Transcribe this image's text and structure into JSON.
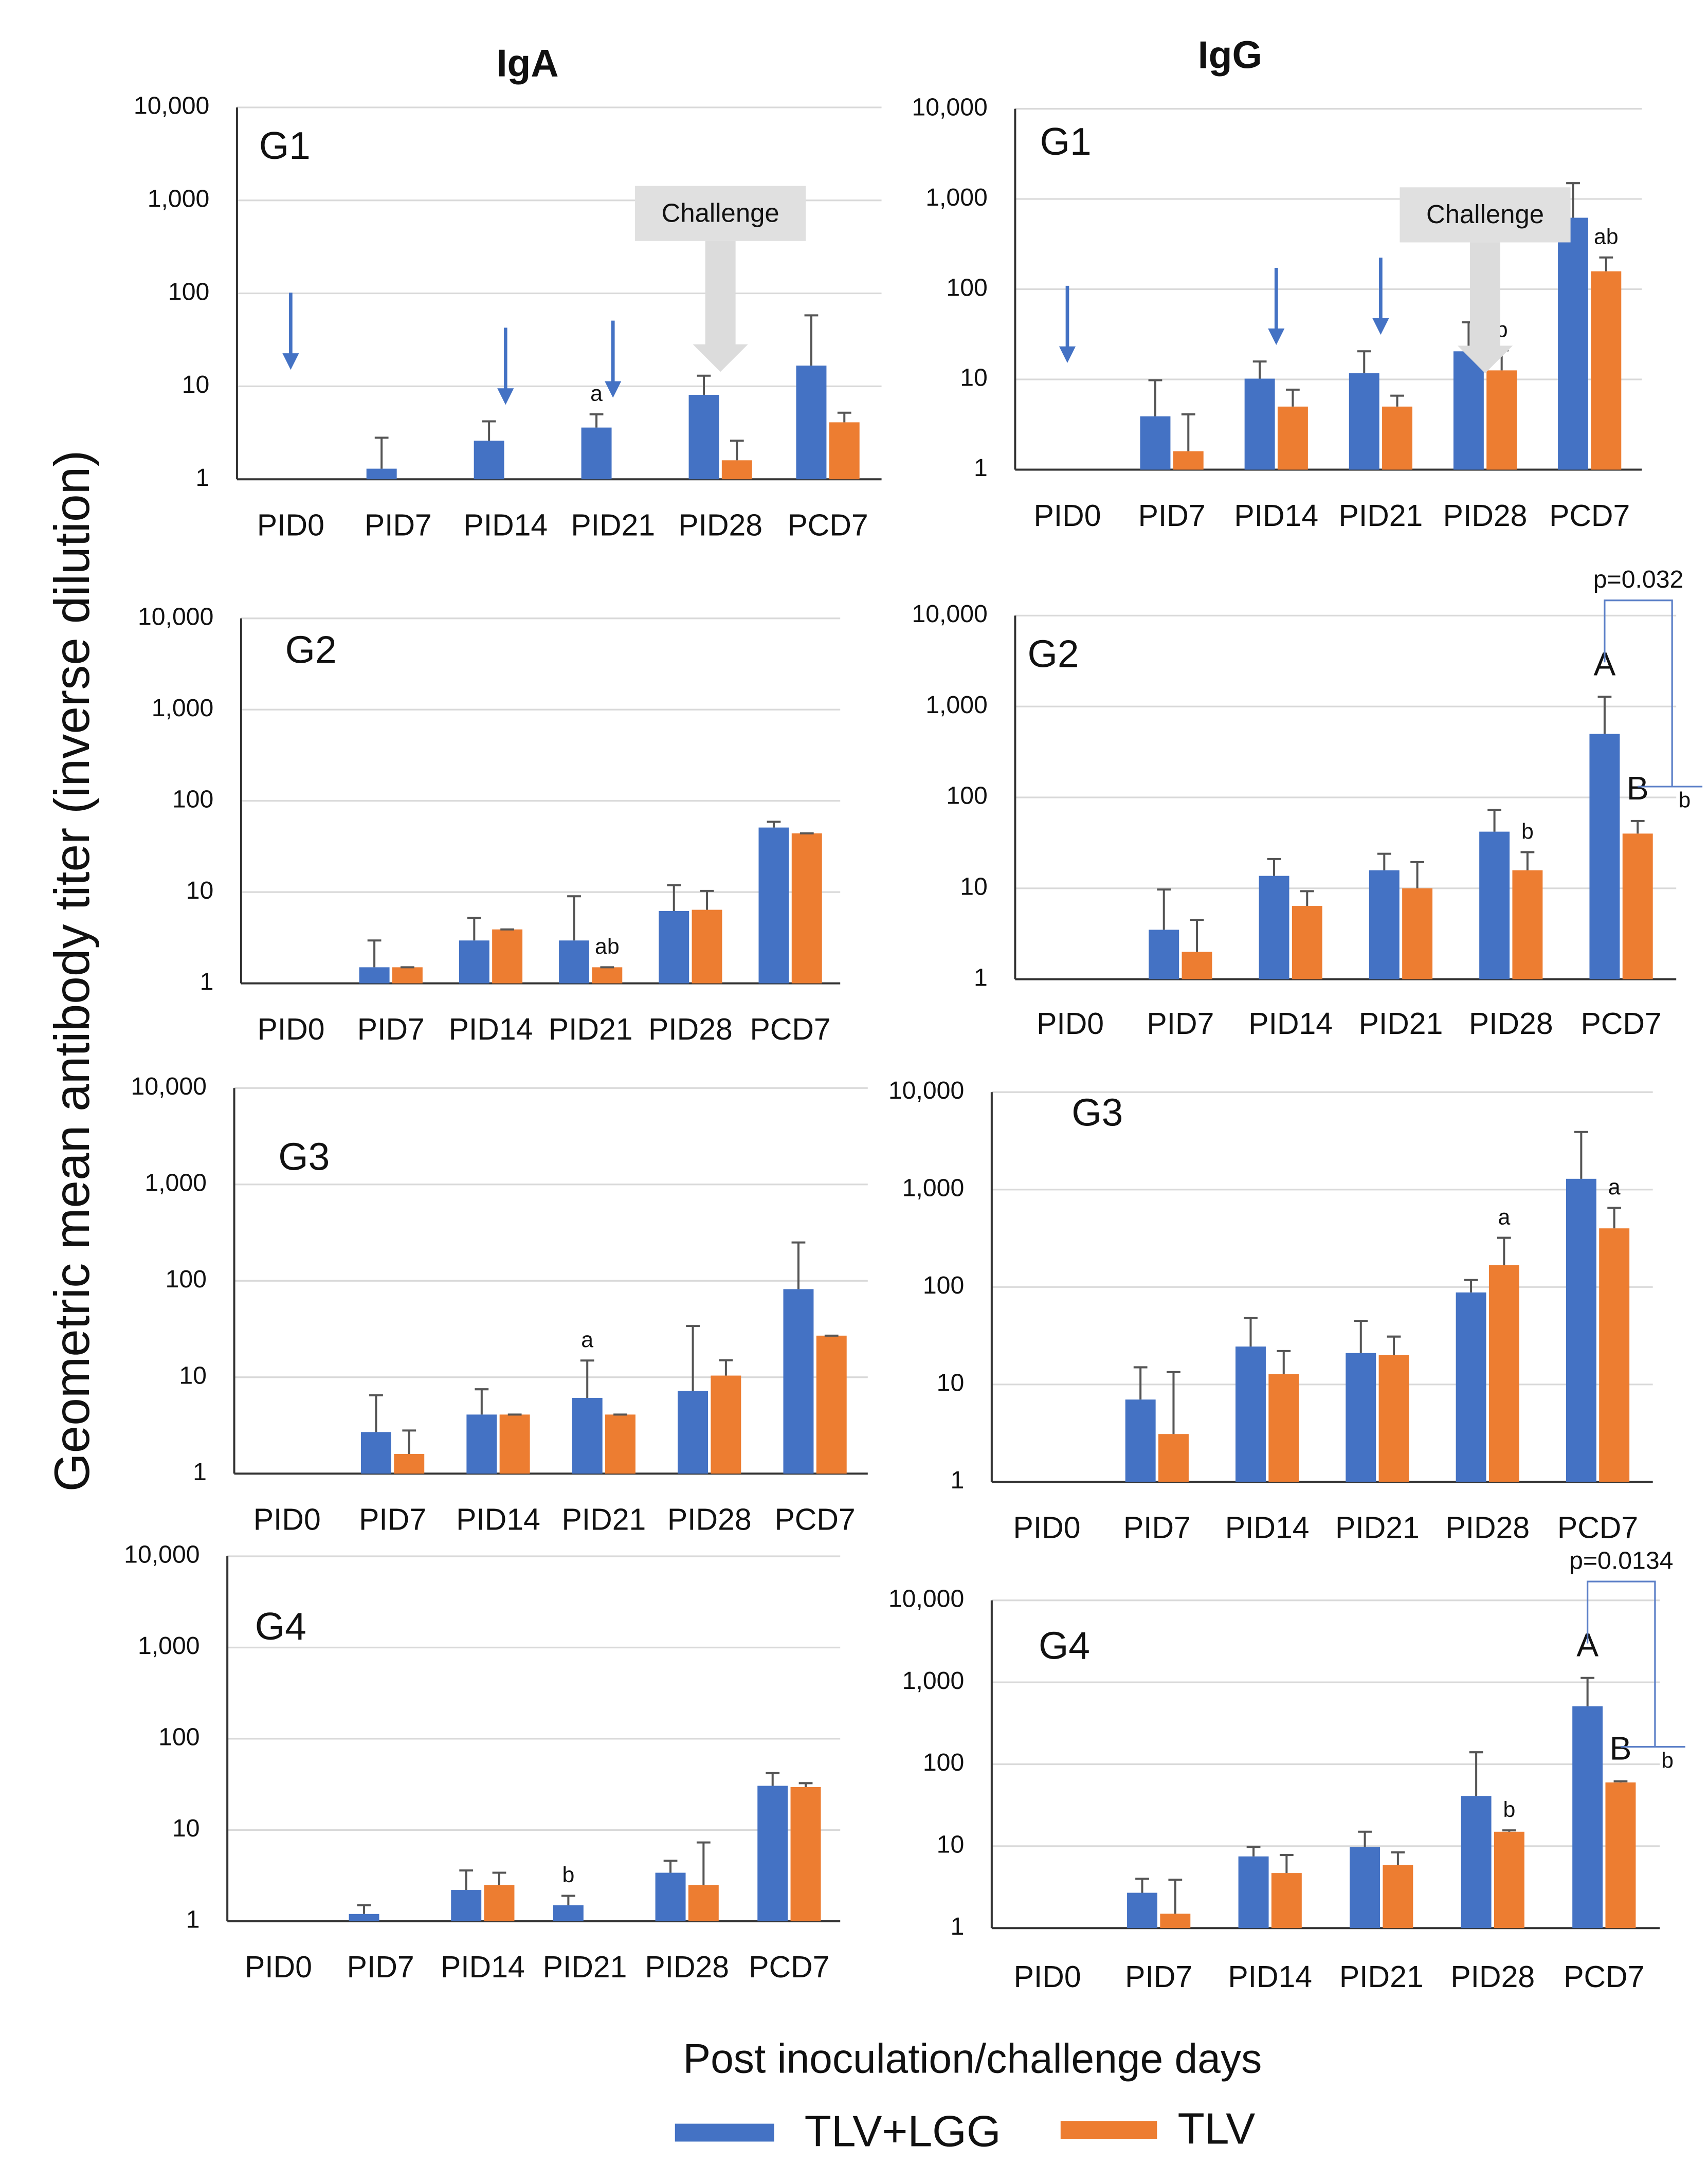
{
  "figure": {
    "columns": [
      "IgA",
      "IgG"
    ],
    "ylabel": "Geometric mean antibody titer (inverse dilution)",
    "xlabel": "Post inoculation/challenge days",
    "legend": [
      {
        "name": "TLV+LGG",
        "color": "#4472c4"
      },
      {
        "name": "TLV",
        "color": "#ed7d31"
      }
    ]
  },
  "chart_data": [
    {
      "type": "bar",
      "title": "G1",
      "categories": [
        "PID0",
        "PID7",
        "PID14",
        "PID21",
        "PID28",
        "PCD7"
      ],
      "series": [
        {
          "values": [
            null,
            1.3,
            2.6,
            3.6,
            8.1,
            16.7
          ],
          "upper": [
            null,
            2.8,
            4.2,
            5,
            13,
            58
          ]
        },
        {
          "values": [
            null,
            null,
            null,
            null,
            1.6,
            4.1
          ],
          "upper": [
            null,
            null,
            null,
            null,
            2.6,
            5.2
          ]
        }
      ],
      "ylim": [
        1,
        10000
      ],
      "yticks": [
        1,
        10,
        100,
        {
          "value": 1000,
          "label": "1,000"
        },
        {
          "value": 10000,
          "label": "10,000"
        }
      ],
      "log_scale": true,
      "grid": true,
      "annotations": [
        {
          "text": "a",
          "category": 3,
          "series": 0
        }
      ],
      "callout": "Challenge"
    },
    {
      "type": "bar",
      "title": "G1",
      "categories": [
        "PID0",
        "PID7",
        "PID14",
        "PID21",
        "PID28",
        "PCD7"
      ],
      "series": [
        {
          "values": [
            null,
            3.9,
            10.2,
            11.7,
            20.5,
            620
          ],
          "upper": [
            null,
            9.8,
            15.8,
            20.5,
            43,
            1500
          ]
        },
        {
          "values": [
            null,
            1.6,
            5,
            5,
            12.6,
            158
          ],
          "upper": [
            null,
            4.1,
            7.7,
            6.6,
            21,
            225
          ]
        }
      ],
      "ylim": [
        1,
        10000
      ],
      "yticks": [
        1,
        10,
        100,
        {
          "value": 1000,
          "label": "1,000"
        },
        {
          "value": 10000,
          "label": "10,000"
        }
      ],
      "log_scale": true,
      "grid": true,
      "annotations": [
        {
          "text": "b",
          "category": 4,
          "series": 1
        },
        {
          "text": "ab",
          "category": 5,
          "series": 1
        }
      ],
      "callout": "Challenge"
    },
    {
      "type": "bar",
      "title": "G2",
      "categories": [
        "PID0",
        "PID7",
        "PID14",
        "PID21",
        "PID28",
        "PCD7"
      ],
      "series": [
        {
          "values": [
            null,
            1.5,
            2.95,
            2.95,
            6.2,
            51
          ],
          "upper": [
            null,
            2.95,
            5.2,
            9,
            11.9,
            59
          ]
        },
        {
          "values": [
            null,
            1.5,
            3.9,
            1.5,
            6.4,
            44
          ],
          "upper": [
            null,
            1.5,
            3.9,
            1.5,
            10.3,
            44
          ]
        }
      ],
      "ylim": [
        1,
        10000
      ],
      "yticks": [
        1,
        10,
        100,
        {
          "value": 1000,
          "label": "1,000"
        },
        {
          "value": 10000,
          "label": "10,000"
        }
      ],
      "log_scale": true,
      "grid": true,
      "annotations": [
        {
          "text": "ab",
          "category": 3,
          "series": 1
        }
      ]
    },
    {
      "type": "bar",
      "title": "G2",
      "categories": [
        "PID0",
        "PID7",
        "PID14",
        "PID21",
        "PID28",
        "PCD7"
      ],
      "series": [
        {
          "values": [
            null,
            3.5,
            13.7,
            15.8,
            42,
            500
          ],
          "upper": [
            null,
            9.7,
            21,
            24,
            73,
            1280
          ]
        },
        {
          "values": [
            null,
            2,
            6.4,
            10,
            15.8,
            40
          ],
          "upper": [
            null,
            4.5,
            9.3,
            19.4,
            25,
            55
          ]
        }
      ],
      "ylim": [
        1,
        10000
      ],
      "yticks": [
        1,
        10,
        100,
        {
          "value": 1000,
          "label": "1,000"
        },
        {
          "value": 10000,
          "label": "10,000"
        }
      ],
      "log_scale": true,
      "grid": true,
      "annotations": [
        {
          "text": "b",
          "category": 4,
          "series": 1
        },
        {
          "text": "A",
          "category": 5,
          "series": 0
        },
        {
          "text": "B",
          "category": 5,
          "series": 1
        },
        {
          "text": "b",
          "category": 5,
          "series": 1
        }
      ],
      "comparison": "p=0.032"
    },
    {
      "type": "bar",
      "title": "G3",
      "categories": [
        "PID0",
        "PID7",
        "PID14",
        "PID21",
        "PID28",
        "PCD7"
      ],
      "series": [
        {
          "values": [
            null,
            2.7,
            4.1,
            6.1,
            7.2,
            82
          ],
          "upper": [
            null,
            6.5,
            7.5,
            14.9,
            34,
            250
          ]
        },
        {
          "values": [
            null,
            1.6,
            4.1,
            4.1,
            10.4,
            27
          ],
          "upper": [
            null,
            2.8,
            4.1,
            4.1,
            15,
            27
          ]
        }
      ],
      "ylim": [
        1,
        10000
      ],
      "yticks": [
        1,
        10,
        100,
        {
          "value": 1000,
          "label": "1,000"
        },
        {
          "value": 10000,
          "label": "10,000"
        }
      ],
      "log_scale": true,
      "grid": true,
      "annotations": [
        {
          "text": "a",
          "category": 3,
          "series": 0
        }
      ]
    },
    {
      "type": "bar",
      "title": "G3",
      "categories": [
        "PID0",
        "PID7",
        "PID14",
        "PID21",
        "PID28",
        "PCD7"
      ],
      "series": [
        {
          "values": [
            null,
            7,
            24.5,
            21,
            88,
            1290
          ],
          "upper": [
            null,
            15,
            48,
            45,
            118,
            3900
          ]
        },
        {
          "values": [
            null,
            3.1,
            12.8,
            20,
            168,
            400
          ],
          "upper": [
            null,
            13.4,
            22,
            31,
            320,
            650
          ]
        }
      ],
      "ylim": [
        1,
        10000
      ],
      "yticks": [
        1,
        10,
        100,
        {
          "value": 1000,
          "label": "1,000"
        },
        {
          "value": 10000,
          "label": "10,000"
        }
      ],
      "log_scale": true,
      "grid": true,
      "annotations": [
        {
          "text": "a",
          "category": 4,
          "series": 1
        },
        {
          "text": "a",
          "category": 5,
          "series": 1
        }
      ]
    },
    {
      "type": "bar",
      "title": "G4",
      "categories": [
        "PID0",
        "PID7",
        "PID14",
        "PID21",
        "PID28",
        "PCD7"
      ],
      "series": [
        {
          "values": [
            null,
            1.2,
            2.2,
            1.5,
            3.4,
            30.5
          ],
          "upper": [
            null,
            1.5,
            3.6,
            1.9,
            4.6,
            42
          ]
        },
        {
          "values": [
            null,
            null,
            2.5,
            null,
            2.5,
            29.5
          ],
          "upper": [
            null,
            null,
            3.4,
            null,
            7.3,
            32.6
          ]
        }
      ],
      "ylim": [
        1,
        10000
      ],
      "yticks": [
        1,
        10,
        100,
        {
          "value": 1000,
          "label": "1,000"
        },
        {
          "value": 10000,
          "label": "10,000"
        }
      ],
      "log_scale": true,
      "grid": true,
      "annotations": [
        {
          "text": "b",
          "category": 3,
          "series": 0
        }
      ]
    },
    {
      "type": "bar",
      "title": "G4",
      "categories": [
        "PID0",
        "PID7",
        "PID14",
        "PID21",
        "PID28",
        "PCD7"
      ],
      "series": [
        {
          "values": [
            null,
            2.7,
            7.5,
            9.8,
            41,
            510
          ],
          "upper": [
            null,
            4,
            9.8,
            15,
            140,
            1130
          ]
        },
        {
          "values": [
            null,
            1.5,
            4.7,
            5.9,
            15,
            60
          ],
          "upper": [
            null,
            3.9,
            7.8,
            8.4,
            15.6,
            62
          ]
        }
      ],
      "ylim": [
        1,
        10000
      ],
      "yticks": [
        1,
        10,
        100,
        {
          "value": 1000,
          "label": "1,000"
        },
        {
          "value": 10000,
          "label": "10,000"
        }
      ],
      "log_scale": true,
      "grid": true,
      "annotations": [
        {
          "text": "b",
          "category": 4,
          "series": 1
        },
        {
          "text": "A",
          "category": 5,
          "series": 0
        },
        {
          "text": "B",
          "category": 5,
          "series": 1
        },
        {
          "text": "b",
          "category": 5,
          "series": 1
        }
      ],
      "comparison": "p=0.0134"
    }
  ]
}
